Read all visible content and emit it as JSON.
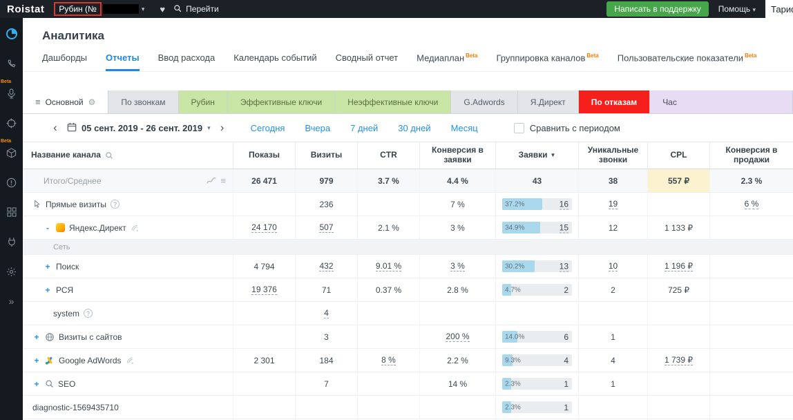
{
  "topbar": {
    "logo": "Roistat",
    "project_button": "Рубин (№",
    "goto_label": "Перейти",
    "support_label": "Написать в поддержку",
    "help_label": "Помощь",
    "tariff_label": "Тариф"
  },
  "sidebar": {
    "beta_label": "Beta",
    "items": [
      {
        "icon": "analytics-icon",
        "beta": false
      },
      {
        "icon": "calls-icon",
        "beta": false
      },
      {
        "icon": "speech-analytics-icon",
        "beta": true
      },
      {
        "icon": "target-icon",
        "beta": false
      },
      {
        "icon": "catalog-icon",
        "beta": true
      },
      {
        "icon": "alerts-icon",
        "beta": false
      },
      {
        "icon": "apps-icon",
        "beta": false
      },
      {
        "icon": "integrations-icon",
        "beta": false
      },
      {
        "icon": "settings-icon",
        "beta": false
      },
      {
        "icon": "collapse-icon",
        "beta": false
      }
    ]
  },
  "page": {
    "title": "Аналитика",
    "beta_label": "Beta",
    "nav_tabs": [
      {
        "label": "Дашборды",
        "active": false,
        "beta": false
      },
      {
        "label": "Отчеты",
        "active": true,
        "beta": false
      },
      {
        "label": "Ввод расхода",
        "active": false,
        "beta": false
      },
      {
        "label": "Календарь событий",
        "active": false,
        "beta": false
      },
      {
        "label": "Сводный отчет",
        "active": false,
        "beta": false
      },
      {
        "label": "Медиаплан",
        "active": false,
        "beta": true
      },
      {
        "label": "Группировка каналов",
        "active": false,
        "beta": true
      },
      {
        "label": "Пользовательские показатели",
        "active": false,
        "beta": true
      }
    ]
  },
  "report_tabs": [
    {
      "label": "Основной",
      "style": "active"
    },
    {
      "label": "По звонкам",
      "style": "default"
    },
    {
      "label": "Рубин",
      "style": "green"
    },
    {
      "label": "Эффективные ключи",
      "style": "green"
    },
    {
      "label": "Неэффективные ключи",
      "style": "green"
    },
    {
      "label": "G.Adwords",
      "style": "default"
    },
    {
      "label": "Я.Директ",
      "style": "default"
    },
    {
      "label": "По отказам",
      "style": "red"
    },
    {
      "label": "Час",
      "style": "purple"
    }
  ],
  "filters": {
    "date_range": "05 сент. 2019 - 26 сент. 2019",
    "presets": [
      "Сегодня",
      "Вчера",
      "7 дней",
      "30 дней",
      "Месяц"
    ],
    "compare_label": "Сравнить с периодом"
  },
  "colors": {
    "accent_blue": "#1e88e5",
    "tab_green": "#c9e5a5",
    "tab_red": "#f5201c",
    "tab_purple": "#e7dcf4",
    "beta_orange": "#f57c00",
    "bar_fill": "#a9d8ec",
    "support_green": "#46a64a"
  },
  "table": {
    "columns": [
      {
        "label": "Название канала",
        "search": true
      },
      {
        "label": "Показы"
      },
      {
        "label": "Визиты"
      },
      {
        "label": "CTR"
      },
      {
        "label": "Конверсия в заявки"
      },
      {
        "label": "Заявки",
        "sort": true
      },
      {
        "label": "Уникальные звонки"
      },
      {
        "label": "CPL"
      },
      {
        "label": "Конверсия в продажи"
      }
    ],
    "rows": [
      {
        "type": "total",
        "indent": 2,
        "name": "Итого/Среднее",
        "tools": true,
        "cells": [
          {
            "v": "26 471",
            "b": true
          },
          {
            "v": "979",
            "b": true
          },
          {
            "v": "3.7 %",
            "b": true
          },
          {
            "v": "4.4 %",
            "b": true
          },
          {
            "v": "43",
            "b": true
          },
          {
            "v": "38",
            "b": true
          },
          {
            "v": "557 ₽",
            "b": true,
            "hl": true
          },
          {
            "v": "2.3 %",
            "b": true
          }
        ]
      },
      {
        "type": "row",
        "indent": 1,
        "icon": "cursor-icon",
        "name": "Прямые визиты",
        "help": true,
        "cells": [
          null,
          {
            "v": "236"
          },
          null,
          {
            "v": "7 %"
          },
          {
            "bar": 37.2,
            "pct": "37.2%",
            "v": "16",
            "link": true
          },
          {
            "v": "19",
            "link": true
          },
          null,
          {
            "v": "6 %",
            "link": true
          }
        ]
      },
      {
        "type": "row",
        "indent": 2,
        "expander": "-",
        "icon": "yandex-direct-icon",
        "name": "Яндекс.Директ",
        "suffix_icon": "signal-icon",
        "cells": [
          {
            "v": "24 170",
            "link": true
          },
          {
            "v": "507",
            "link": true
          },
          {
            "v": "2.1 %"
          },
          {
            "v": "3 %"
          },
          {
            "bar": 34.9,
            "pct": "34.9%",
            "v": "15",
            "link": true
          },
          {
            "v": "12"
          },
          {
            "v": "1 133 ₽"
          },
          null
        ]
      },
      {
        "type": "group",
        "name": "Сеть"
      },
      {
        "type": "row",
        "indent": 2,
        "expander": "+",
        "name": "Поиск",
        "cells": [
          {
            "v": "4 794"
          },
          {
            "v": "432",
            "link": true
          },
          {
            "v": "9.01 %",
            "link": true
          },
          {
            "v": "3 %",
            "link": true
          },
          {
            "bar": 30.2,
            "pct": "30.2%",
            "v": "13",
            "link": true
          },
          {
            "v": "10",
            "link": true
          },
          {
            "v": "1 196 ₽",
            "link": true
          },
          null
        ]
      },
      {
        "type": "row",
        "indent": 2,
        "expander": "+",
        "name": "РСЯ",
        "cells": [
          {
            "v": "19 376",
            "link": true
          },
          {
            "v": "71"
          },
          {
            "v": "0.37 %"
          },
          {
            "v": "2.8 %"
          },
          {
            "bar": 4.7,
            "pct": "4.7%",
            "v": "2"
          },
          {
            "v": "2"
          },
          {
            "v": "725 ₽"
          },
          null
        ]
      },
      {
        "type": "row",
        "indent": 3,
        "name": "system",
        "help": true,
        "cells": [
          null,
          {
            "v": "4",
            "link": true
          },
          null,
          null,
          null,
          null,
          null,
          null
        ]
      },
      {
        "type": "row",
        "indent": 1,
        "expander": "+",
        "icon": "globe-icon",
        "name": "Визиты с сайтов",
        "cells": [
          null,
          {
            "v": "3"
          },
          null,
          {
            "v": "200 %",
            "link": true
          },
          {
            "bar": 14.0,
            "pct": "14.0%",
            "v": "6"
          },
          {
            "v": "1"
          },
          null,
          null
        ]
      },
      {
        "type": "row",
        "indent": 1,
        "expander": "+",
        "icon": "google-ads-icon",
        "name": "Google AdWords",
        "suffix_icon": "signal-icon",
        "cells": [
          {
            "v": "2 301"
          },
          {
            "v": "184"
          },
          {
            "v": "8 %",
            "link": true
          },
          {
            "v": "2.2 %"
          },
          {
            "bar": 9.3,
            "pct": "9.3%",
            "v": "4"
          },
          {
            "v": "4"
          },
          {
            "v": "1 739 ₽",
            "link": true
          },
          null
        ]
      },
      {
        "type": "row",
        "indent": 1,
        "expander": "+",
        "icon": "seo-icon",
        "name": "SEO",
        "cells": [
          null,
          {
            "v": "7"
          },
          null,
          {
            "v": "14 %"
          },
          {
            "bar": 2.3,
            "pct": "2.3%",
            "v": "1"
          },
          {
            "v": "1"
          },
          null,
          null
        ]
      },
      {
        "type": "row",
        "indent": 1,
        "name": "diagnostic-1569435710",
        "cells": [
          null,
          null,
          null,
          null,
          {
            "bar": 2.3,
            "pct": "2.3%",
            "v": "1"
          },
          null,
          null,
          null
        ]
      }
    ]
  }
}
